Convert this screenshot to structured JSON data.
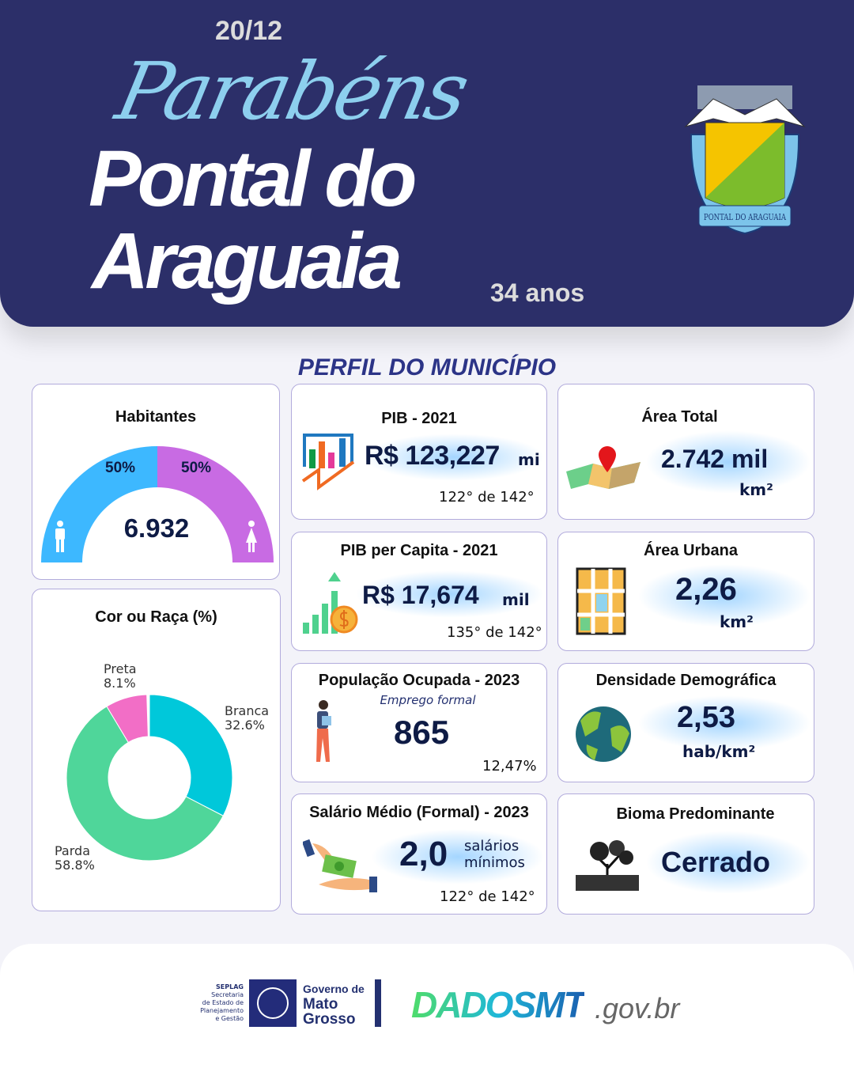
{
  "header": {
    "script_title": "Parabéns",
    "date": "20/12",
    "title_line1": "Pontal do",
    "title_line2": "Araguaia",
    "anniversary": "34 anos",
    "crest_text": "PONTAL DO ARAGUAIA"
  },
  "section_title": "PERFIL DO MUNICÍPIO",
  "habitantes": {
    "title": "Habitantes",
    "total": "6.932",
    "male_pct": "50%",
    "female_pct": "50%",
    "male_fraction": 0.5,
    "colors": {
      "male": "#3db8ff",
      "female": "#c86be3"
    }
  },
  "pib": {
    "title": "PIB - 2021",
    "value": "R$ 123,227",
    "unit": "mi",
    "rank": "122°  de 142°"
  },
  "pib_capita": {
    "title": "PIB per Capita - 2021",
    "value": "R$ 17,674",
    "unit": "mil",
    "rank": "135° de 142°"
  },
  "pop_ocupada": {
    "title": "População  Ocupada - 2023",
    "subtitle": "Emprego formal",
    "value": "865",
    "pct": "12,47%"
  },
  "salario": {
    "title": "Salário Médio (Formal) - 2023",
    "value": "2,0",
    "unit_line1": "salários",
    "unit_line2": "mínimos",
    "rank": "122° de 142°"
  },
  "area_total": {
    "title": "Área Total",
    "value": "2.742 mil",
    "unit": "km²"
  },
  "area_urbana": {
    "title": "Área Urbana",
    "value": "2,26",
    "unit": "km²"
  },
  "densidade": {
    "title": "Densidade Demográfica",
    "value": "2,53",
    "unit": "hab/km²"
  },
  "bioma": {
    "title": "Bioma Predominante",
    "value": "Cerrado"
  },
  "chart_data": {
    "type": "pie",
    "title": "Cor ou Raça (%)",
    "categories": [
      "Branca",
      "Parda",
      "Preta"
    ],
    "values": [
      32.6,
      58.8,
      8.1
    ],
    "labels": [
      "32.6%",
      "58.8%",
      "8.1%"
    ],
    "colors": [
      "#00c8da",
      "#4fd69a",
      "#f26ec6"
    ],
    "donut": true
  },
  "footer": {
    "seplag": [
      "SEPLAG",
      "Secretaria",
      "de Estado de",
      "Planejamento",
      "e Gestão"
    ],
    "gov": [
      "Governo de",
      "Mato",
      "Grosso"
    ],
    "dados": "DADOSMT",
    "domain": ".gov.br"
  }
}
